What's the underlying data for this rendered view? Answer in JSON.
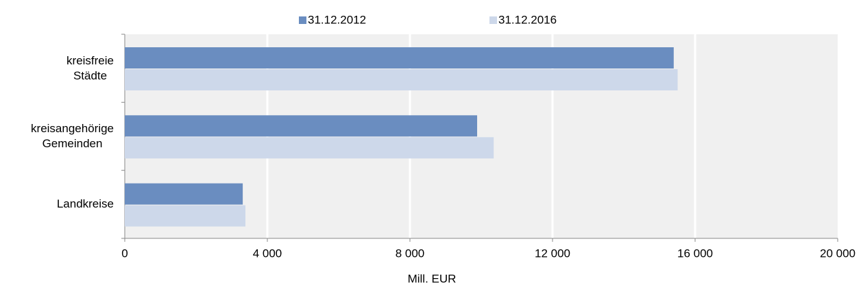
{
  "chart_data": {
    "type": "barh",
    "categories": [
      "kreisfreie\nStädte",
      "kreisangehörige\nGemeinden",
      "Landkreise"
    ],
    "series": [
      {
        "name": "31.12.2012",
        "color": "#6a8dc0",
        "values": [
          15400,
          9885,
          3310
        ]
      },
      {
        "name": "31.12.2016",
        "color": "#cdd8ea",
        "values": [
          15510,
          10350,
          3385
        ]
      }
    ],
    "xlabel": "Mill. EUR",
    "xlim": [
      0,
      20000
    ],
    "xticks": [
      0,
      {
        "value": 4000,
        "label": "4 000"
      },
      {
        "value": 8000,
        "label": "8 000"
      },
      {
        "value": 12000,
        "label": "12 000"
      },
      {
        "value": 16000,
        "label": "16 000"
      },
      {
        "value": 20000,
        "label": "20 000"
      }
    ],
    "grid": true,
    "legend": "top"
  }
}
